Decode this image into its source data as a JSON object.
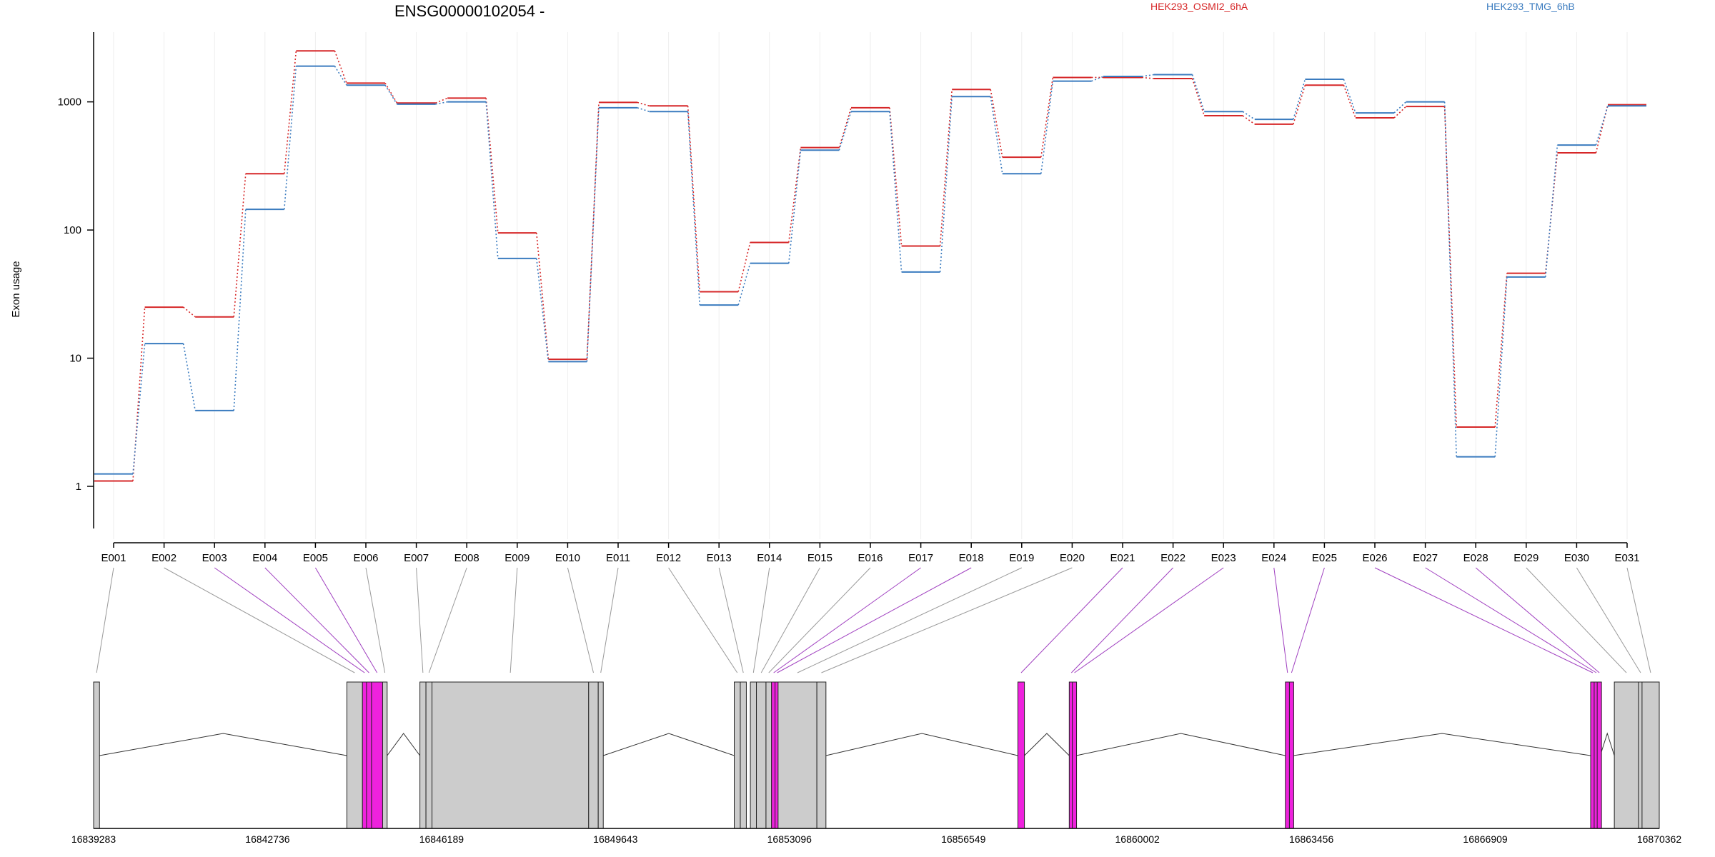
{
  "chart_data": {
    "type": "line",
    "title": "ENSG00000102054 -",
    "ylabel": "Exon usage",
    "yscale": "log",
    "ylim": [
      0.5,
      3500
    ],
    "yticks": [
      1,
      10,
      100,
      1000
    ],
    "ytick_labels": [
      "1",
      "10",
      "100",
      "1000"
    ],
    "grid": true,
    "legend_position": "top",
    "categories": [
      "E001",
      "E002",
      "E003",
      "E004",
      "E005",
      "E006",
      "E007",
      "E008",
      "E009",
      "E010",
      "E011",
      "E012",
      "E013",
      "E014",
      "E015",
      "E016",
      "E017",
      "E018",
      "E019",
      "E020",
      "E021",
      "E022",
      "E023",
      "E024",
      "E025",
      "E026",
      "E027",
      "E028",
      "E029",
      "E030",
      "E031"
    ],
    "series": [
      {
        "name": "HEK293_OSMI2_6hA",
        "color": "#d62728",
        "values": [
          1.1,
          25,
          21,
          275,
          2500,
          1400,
          980,
          1070,
          95,
          9.8,
          990,
          930,
          33,
          80,
          440,
          900,
          75,
          1250,
          370,
          1550,
          1550,
          1520,
          780,
          670,
          1350,
          750,
          920,
          2.9,
          46,
          400,
          950
        ]
      },
      {
        "name": "HEK293_TMG_6hB",
        "color": "#3a7bbf",
        "values": [
          1.25,
          13,
          3.9,
          145,
          1900,
          1350,
          960,
          1000,
          60,
          9.4,
          900,
          840,
          26,
          55,
          420,
          840,
          47,
          1100,
          275,
          1450,
          1580,
          1630,
          840,
          730,
          1500,
          820,
          1000,
          1.7,
          43,
          460,
          930
        ]
      }
    ],
    "gene_model": {
      "coordinate_ticks": [
        "16839283",
        "16842736",
        "16846189",
        "16849643",
        "16853096",
        "16856549",
        "16860002",
        "16863456",
        "16866909",
        "16870362"
      ],
      "coord_start": 16839283,
      "coord_end": 16870362,
      "exons": [
        {
          "id": "E001",
          "start": 16839283,
          "end": 16839400,
          "highlight": false
        },
        {
          "id": "E002",
          "start": 16844310,
          "end": 16844620,
          "highlight": false
        },
        {
          "id": "E003",
          "start": 16844620,
          "end": 16844700,
          "highlight": true
        },
        {
          "id": "E004",
          "start": 16844700,
          "end": 16844800,
          "highlight": true
        },
        {
          "id": "E005",
          "start": 16844800,
          "end": 16845020,
          "highlight": true
        },
        {
          "id": "E006",
          "start": 16845020,
          "end": 16845110,
          "highlight": false
        },
        {
          "id": "E007",
          "start": 16845760,
          "end": 16845880,
          "highlight": false
        },
        {
          "id": "E008",
          "start": 16845880,
          "end": 16846000,
          "highlight": false
        },
        {
          "id": "E009",
          "start": 16846000,
          "end": 16849110,
          "highlight": false
        },
        {
          "id": "E010",
          "start": 16849110,
          "end": 16849300,
          "highlight": false
        },
        {
          "id": "E011",
          "start": 16849300,
          "end": 16849400,
          "highlight": false
        },
        {
          "id": "E012",
          "start": 16852000,
          "end": 16852120,
          "highlight": false
        },
        {
          "id": "E013",
          "start": 16852120,
          "end": 16852240,
          "highlight": false
        },
        {
          "id": "E014",
          "start": 16852320,
          "end": 16852440,
          "highlight": false
        },
        {
          "id": "E015",
          "start": 16852440,
          "end": 16852630,
          "highlight": false
        },
        {
          "id": "E016",
          "start": 16852630,
          "end": 16852740,
          "highlight": false
        },
        {
          "id": "E017",
          "start": 16852740,
          "end": 16852810,
          "highlight": true
        },
        {
          "id": "E018",
          "start": 16852810,
          "end": 16852870,
          "highlight": true
        },
        {
          "id": "E019",
          "start": 16852870,
          "end": 16853640,
          "highlight": false
        },
        {
          "id": "E020",
          "start": 16853640,
          "end": 16853820,
          "highlight": false
        },
        {
          "id": "E021",
          "start": 16857630,
          "end": 16857760,
          "highlight": true
        },
        {
          "id": "E022",
          "start": 16858650,
          "end": 16858710,
          "highlight": true
        },
        {
          "id": "E023",
          "start": 16858710,
          "end": 16858790,
          "highlight": true
        },
        {
          "id": "E024",
          "start": 16862940,
          "end": 16863020,
          "highlight": true
        },
        {
          "id": "E025",
          "start": 16863020,
          "end": 16863100,
          "highlight": true
        },
        {
          "id": "E026",
          "start": 16869000,
          "end": 16869070,
          "highlight": true
        },
        {
          "id": "E027",
          "start": 16869070,
          "end": 16869130,
          "highlight": true
        },
        {
          "id": "E028",
          "start": 16869130,
          "end": 16869190,
          "highlight": true
        },
        {
          "id": "E029",
          "start": 16869470,
          "end": 16869950,
          "highlight": false
        },
        {
          "id": "E030",
          "start": 16869950,
          "end": 16870020,
          "highlight": false
        },
        {
          "id": "E031",
          "start": 16870020,
          "end": 16870362,
          "highlight": false
        }
      ]
    }
  },
  "colors": {
    "highlight_exon": "#ee22dd",
    "normal_exon": "#cccccc",
    "connector_highlight": "#a040c0",
    "connector_normal": "#999999"
  }
}
